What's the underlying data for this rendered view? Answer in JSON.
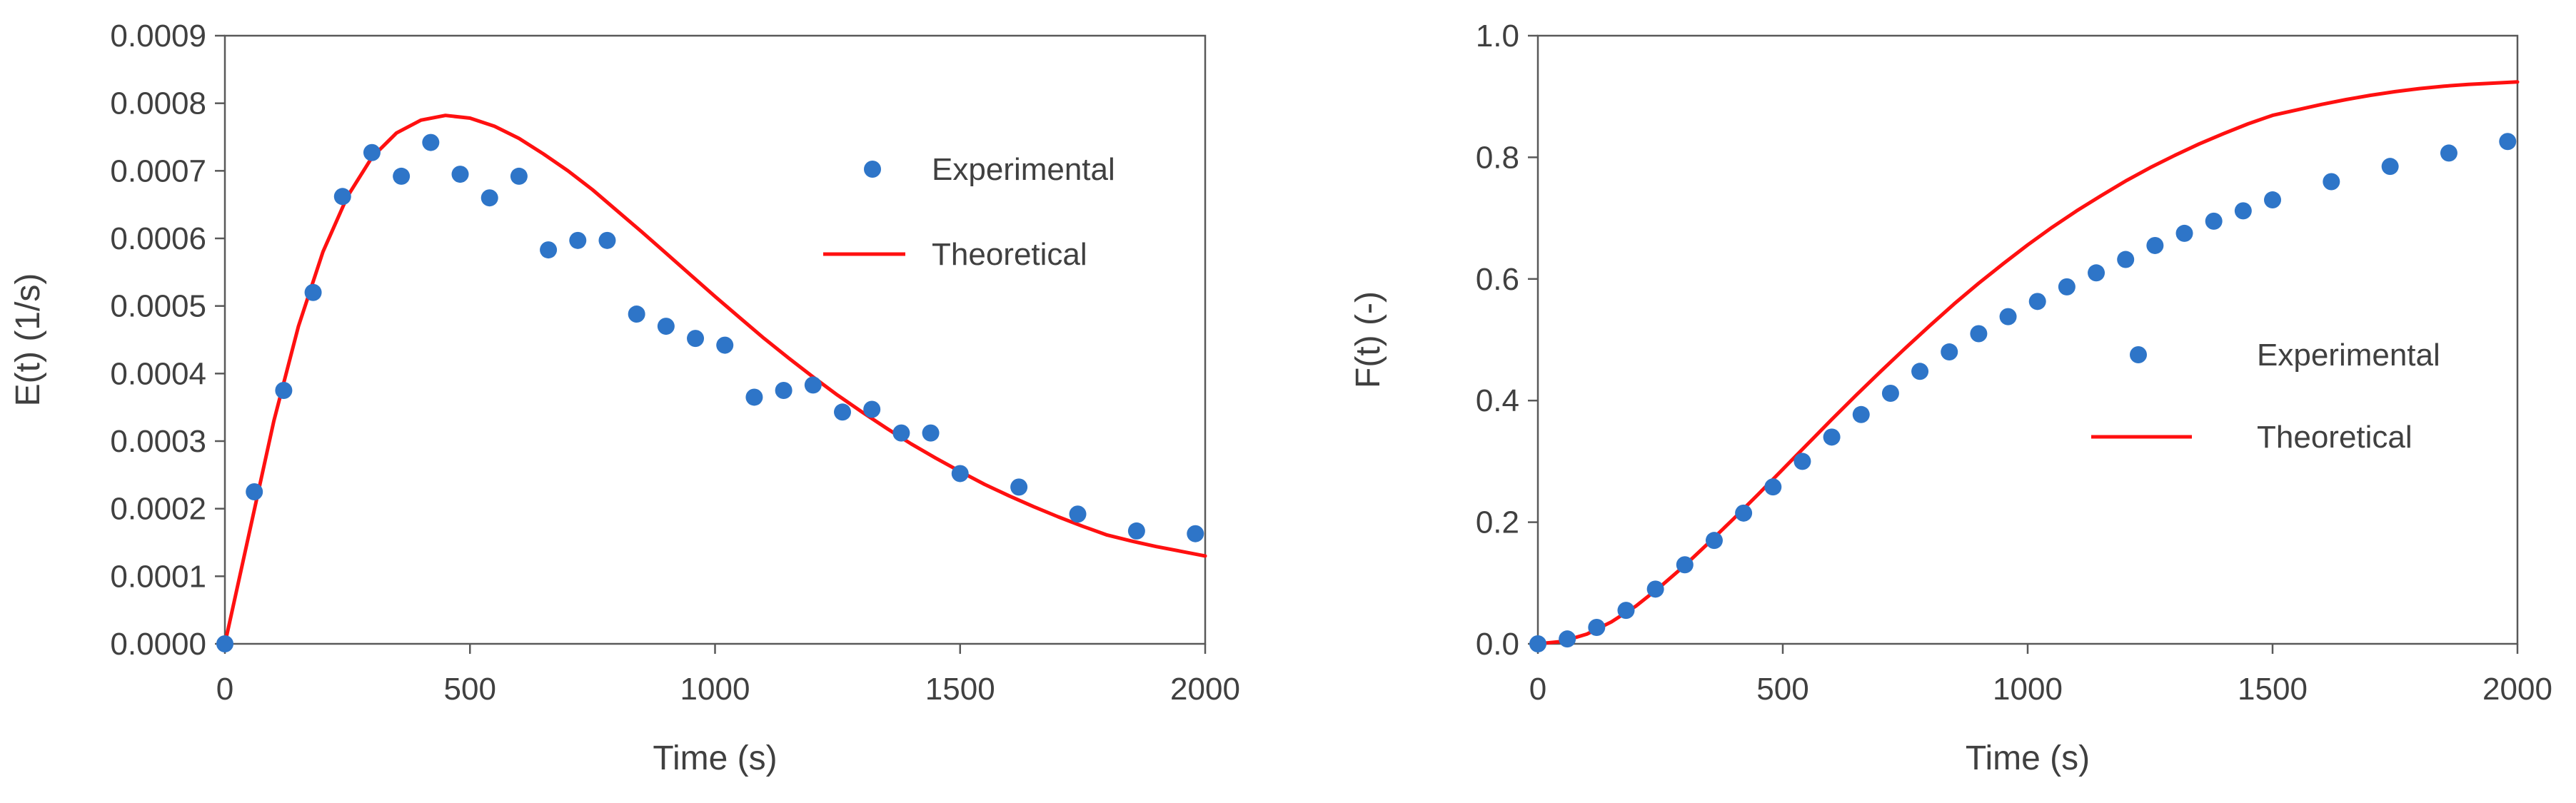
{
  "colors": {
    "experimental": "#2E75C8",
    "theoretical": "#FF1010",
    "axis": "#595959",
    "text": "#404040"
  },
  "chart_data": [
    {
      "type": "scatter",
      "title": "",
      "xlabel": "Time (s)",
      "ylabel": "E(t) (1/s)",
      "xlim": [
        0,
        2000
      ],
      "ylim": [
        0,
        0.0009
      ],
      "grid": false,
      "legend_position": "right",
      "x_ticks": [
        0,
        500,
        1000,
        1500,
        2000
      ],
      "x_tick_labels": [
        "0",
        "500",
        "1000",
        "1500",
        "2000"
      ],
      "y_ticks": [
        0,
        0.0001,
        0.0002,
        0.0003,
        0.0004,
        0.0005,
        0.0006,
        0.0007,
        0.0008,
        0.0009
      ],
      "y_tick_labels": [
        "0.0000",
        "0.0001",
        "0.0002",
        "0.0003",
        "0.0004",
        "0.0005",
        "0.0006",
        "0.0007",
        "0.0008",
        "0.0009"
      ],
      "series": [
        {
          "name": "Experimental",
          "kind": "scatter",
          "x": [
            0,
            60,
            120,
            180,
            240,
            300,
            360,
            420,
            480,
            540,
            600,
            660,
            720,
            780,
            840,
            900,
            960,
            1020,
            1080,
            1140,
            1200,
            1260,
            1320,
            1380,
            1440,
            1500,
            1620,
            1740,
            1860,
            1980
          ],
          "y": [
            0.0,
            0.000225,
            0.000375,
            0.00052,
            0.000662,
            0.000727,
            0.000692,
            0.000742,
            0.000695,
            0.00066,
            0.000692,
            0.000583,
            0.000597,
            0.000597,
            0.000488,
            0.00047,
            0.000452,
            0.000442,
            0.000365,
            0.000375,
            0.000383,
            0.000343,
            0.000347,
            0.000312,
            0.000312,
            0.000252,
            0.000232,
            0.000192,
            0.000167,
            0.000163
          ]
        },
        {
          "name": "Theoretical",
          "kind": "line",
          "x": [
            0,
            50,
            100,
            150,
            200,
            250,
            300,
            350,
            400,
            450,
            500,
            550,
            600,
            650,
            700,
            750,
            800,
            850,
            900,
            950,
            1000,
            1050,
            1100,
            1150,
            1200,
            1250,
            1300,
            1350,
            1400,
            1450,
            1500,
            1550,
            1600,
            1650,
            1700,
            1750,
            1800,
            1850,
            1900,
            1950,
            2000
          ],
          "y": [
            0.0,
            0.000165,
            0.00033,
            0.00047,
            0.00058,
            0.000662,
            0.00072,
            0.000756,
            0.000775,
            0.000782,
            0.000778,
            0.000766,
            0.000748,
            0.000725,
            0.0007,
            0.000672,
            0.000641,
            0.00061,
            0.000578,
            0.000546,
            0.000514,
            0.000483,
            0.000452,
            0.000423,
            0.000395,
            0.000368,
            0.000343,
            0.000319,
            0.000296,
            0.000275,
            0.000255,
            0.000236,
            0.000219,
            0.000203,
            0.000188,
            0.000174,
            0.000161,
            0.000152,
            0.000144,
            0.000137,
            0.00013
          ]
        }
      ]
    },
    {
      "type": "scatter",
      "title": "",
      "xlabel": "Time (s)",
      "ylabel": "F(t) (-)",
      "xlim": [
        0,
        2000
      ],
      "ylim": [
        0,
        1.0
      ],
      "grid": false,
      "legend_position": "center-right",
      "x_ticks": [
        0,
        500,
        1000,
        1500,
        2000
      ],
      "x_tick_labels": [
        "0",
        "500",
        "1000",
        "1500",
        "2000"
      ],
      "y_ticks": [
        0,
        0.2,
        0.4,
        0.6,
        0.8,
        1.0
      ],
      "y_tick_labels": [
        "0.0",
        "0.2",
        "0.4",
        "0.6",
        "0.8",
        "1.0"
      ],
      "series": [
        {
          "name": "Experimental",
          "kind": "scatter",
          "x": [
            0,
            60,
            120,
            180,
            240,
            300,
            360,
            420,
            480,
            540,
            600,
            660,
            720,
            780,
            840,
            900,
            960,
            1020,
            1080,
            1140,
            1200,
            1260,
            1320,
            1380,
            1440,
            1500,
            1620,
            1740,
            1860,
            1980
          ],
          "y": [
            0.0,
            0.008,
            0.027,
            0.055,
            0.09,
            0.13,
            0.17,
            0.215,
            0.258,
            0.3,
            0.34,
            0.377,
            0.412,
            0.448,
            0.48,
            0.51,
            0.538,
            0.563,
            0.587,
            0.61,
            0.632,
            0.655,
            0.675,
            0.695,
            0.712,
            0.73,
            0.76,
            0.785,
            0.807,
            0.826
          ]
        },
        {
          "name": "Theoretical",
          "kind": "line",
          "x": [
            0,
            50,
            100,
            150,
            200,
            250,
            300,
            350,
            400,
            450,
            500,
            550,
            600,
            650,
            700,
            750,
            800,
            850,
            900,
            950,
            1000,
            1050,
            1100,
            1150,
            1200,
            1250,
            1300,
            1350,
            1400,
            1450,
            1500,
            1550,
            1600,
            1650,
            1700,
            1750,
            1800,
            1850,
            1900,
            1950,
            2000
          ],
          "y": [
            0.0,
            0.004,
            0.016,
            0.036,
            0.062,
            0.094,
            0.129,
            0.167,
            0.206,
            0.246,
            0.287,
            0.328,
            0.369,
            0.409,
            0.448,
            0.486,
            0.523,
            0.559,
            0.593,
            0.625,
            0.656,
            0.685,
            0.712,
            0.737,
            0.761,
            0.783,
            0.803,
            0.822,
            0.839,
            0.855,
            0.869,
            0.878,
            0.887,
            0.895,
            0.902,
            0.908,
            0.913,
            0.917,
            0.92,
            0.922,
            0.924
          ]
        }
      ]
    }
  ]
}
